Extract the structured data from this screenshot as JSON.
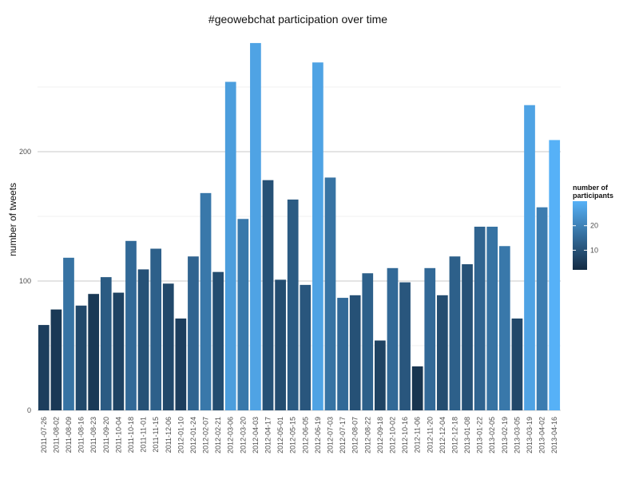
{
  "chart_data": {
    "type": "bar",
    "title": "#geowebchat participation over time",
    "xlabel": "",
    "ylabel": "number of tweets",
    "ylim": [
      0,
      285
    ],
    "yticks": [
      0,
      100,
      200
    ],
    "grid": true,
    "legend_position": "right",
    "legend": {
      "title_lines": [
        "number of",
        "participants"
      ],
      "ticks": [
        10,
        20
      ],
      "range": [
        2,
        30
      ],
      "color_low": "#132B43",
      "color_high": "#56B1F7"
    },
    "categories": [
      "2011-07-26",
      "2011-08-02",
      "2011-08-09",
      "2011-08-16",
      "2011-08-23",
      "2011-09-20",
      "2011-10-04",
      "2011-10-18",
      "2011-11-01",
      "2011-11-15",
      "2011-12-06",
      "2012-01-10",
      "2012-01-24",
      "2012-02-07",
      "2012-02-21",
      "2012-03-06",
      "2012-03-20",
      "2012-04-03",
      "2012-04-17",
      "2012-05-01",
      "2012-05-15",
      "2012-06-05",
      "2012-06-19",
      "2012-07-03",
      "2012-07-17",
      "2012-08-07",
      "2012-08-22",
      "2012-09-18",
      "2012-10-02",
      "2012-10-16",
      "2012-11-06",
      "2012-11-20",
      "2012-12-04",
      "2012-12-18",
      "2013-01-08",
      "2013-01-22",
      "2013-02-05",
      "2013-02-19",
      "2013-03-05",
      "2013-03-19",
      "2013-04-02",
      "2013-04-16"
    ],
    "values": [
      66,
      78,
      118,
      81,
      90,
      103,
      91,
      131,
      109,
      125,
      98,
      71,
      119,
      168,
      107,
      254,
      148,
      284,
      178,
      101,
      163,
      97,
      269,
      180,
      87,
      89,
      106,
      54,
      110,
      99,
      34,
      110,
      89,
      119,
      113,
      142,
      142,
      127,
      71,
      236,
      157,
      209
    ],
    "participants": [
      6,
      5,
      17,
      8,
      5,
      12,
      7,
      15,
      10,
      13,
      8,
      6,
      14,
      18,
      9,
      26,
      18,
      27,
      10,
      9,
      12,
      11,
      27,
      17,
      15,
      10,
      13,
      7,
      15,
      11,
      4,
      15,
      9,
      13,
      10,
      14,
      17,
      18,
      8,
      27,
      19,
      30
    ]
  }
}
